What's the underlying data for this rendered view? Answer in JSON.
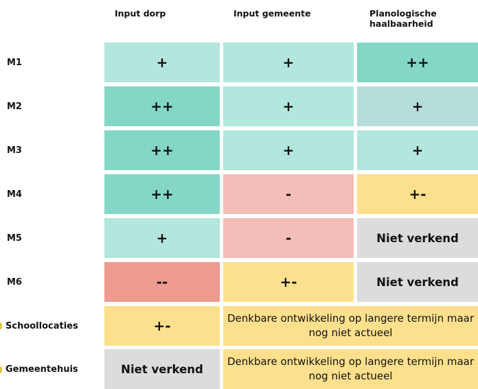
{
  "header": {
    "columns": [
      "Input dorp",
      "Input gemeente",
      "Planologische haalbaarheid"
    ]
  },
  "table": {
    "rows": [
      {
        "label": "M1",
        "cells": [
          "+",
          "+",
          "++"
        ]
      },
      {
        "label": "M2",
        "cells": [
          "++",
          "+",
          "+"
        ]
      },
      {
        "label": "M3",
        "cells": [
          "++",
          "+",
          "+"
        ]
      },
      {
        "label": "M4",
        "cells": [
          "++",
          "-",
          "+-"
        ]
      },
      {
        "label": "M5",
        "cells": [
          "+",
          "-",
          "Niet verkend"
        ]
      },
      {
        "label": "M6",
        "cells": [
          "--",
          "+-",
          "Niet verkend"
        ]
      },
      {
        "label": "Schoollocaties",
        "cells": [
          "+-",
          "Denkbare ontwikkeling op langere termijn maar nog niet actueel"
        ]
      },
      {
        "label": "Gemeentehuis",
        "cells": [
          "Niet verkend",
          "Denkbare ontwikkeling op langere termijn maar nog niet actueel"
        ]
      }
    ]
  }
}
